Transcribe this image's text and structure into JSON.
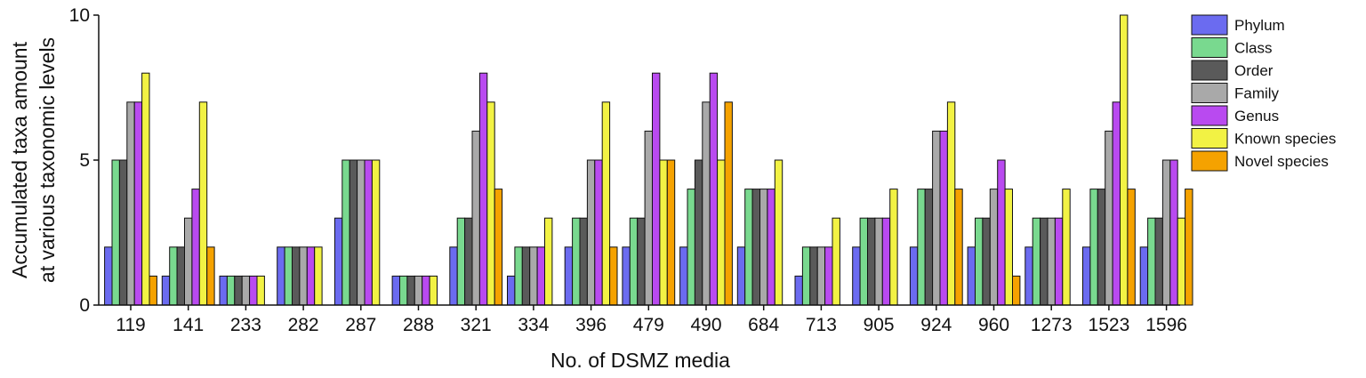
{
  "chart_data": {
    "type": "bar",
    "xlabel": "No. of DSMZ media",
    "ylabel_lines": [
      "Accumulated taxa amount",
      "at various taxonomic levels"
    ],
    "ylim": [
      0,
      10
    ],
    "yticks": [
      0,
      5,
      10
    ],
    "grid": false,
    "legend_position": "top-right",
    "categories": [
      "119",
      "141",
      "233",
      "282",
      "287",
      "288",
      "321",
      "334",
      "396",
      "479",
      "490",
      "684",
      "713",
      "905",
      "924",
      "960",
      "1273",
      "1523",
      "1596"
    ],
    "series": [
      {
        "name": "Phylum",
        "color": "#6b6bf0",
        "values": [
          2,
          1,
          1,
          2,
          3,
          1,
          2,
          1,
          2,
          2,
          2,
          2,
          1,
          2,
          2,
          2,
          2,
          2,
          2
        ]
      },
      {
        "name": "Class",
        "color": "#79d98f",
        "values": [
          5,
          2,
          1,
          2,
          5,
          1,
          3,
          2,
          3,
          3,
          4,
          4,
          2,
          3,
          4,
          3,
          3,
          4,
          3
        ]
      },
      {
        "name": "Order",
        "color": "#5a5a5a",
        "values": [
          5,
          2,
          1,
          2,
          5,
          1,
          3,
          2,
          3,
          3,
          5,
          4,
          2,
          3,
          4,
          3,
          3,
          4,
          3
        ]
      },
      {
        "name": "Family",
        "color": "#a9a9a9",
        "values": [
          7,
          3,
          1,
          2,
          5,
          1,
          6,
          2,
          5,
          6,
          7,
          4,
          2,
          3,
          6,
          4,
          3,
          6,
          5
        ]
      },
      {
        "name": "Genus",
        "color": "#b94af0",
        "values": [
          7,
          4,
          1,
          2,
          5,
          1,
          8,
          2,
          5,
          8,
          8,
          4,
          2,
          3,
          6,
          5,
          3,
          7,
          5
        ]
      },
      {
        "name": "Known species",
        "color": "#f2f244",
        "values": [
          8,
          7,
          1,
          2,
          5,
          1,
          7,
          3,
          7,
          5,
          5,
          5,
          3,
          4,
          7,
          4,
          4,
          10,
          3
        ]
      },
      {
        "name": "Novel species",
        "color": "#f5a200",
        "values": [
          1,
          2,
          0,
          0,
          0,
          0,
          4,
          0,
          2,
          5,
          7,
          0,
          0,
          0,
          4,
          1,
          0,
          4,
          4
        ]
      }
    ]
  }
}
